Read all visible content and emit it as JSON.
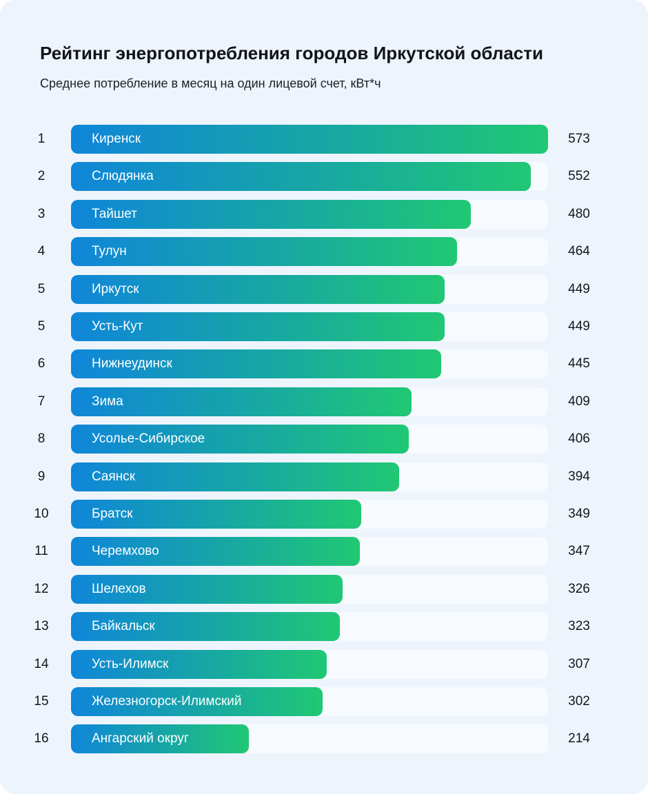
{
  "header": {
    "title": "Рейтинг энергопотребления городов Иркутской области",
    "subtitle": "Среднее потребление в месяц на один лицевой счет, кВт*ч"
  },
  "chart_data": {
    "type": "bar",
    "orientation": "horizontal",
    "title": "Рейтинг энергопотребления городов Иркутской области",
    "subtitle": "Среднее потребление в месяц на один лицевой счет, кВт*ч",
    "xlim": [
      0,
      573
    ],
    "grid": false,
    "colors": {
      "bar_start": "#0f86d9",
      "bar_end": "#20c873",
      "track": "#f7fafe",
      "background": "#eef4fc"
    },
    "ranks": [
      "1",
      "2",
      "3",
      "4",
      "5",
      "5",
      "6",
      "7",
      "8",
      "9",
      "10",
      "11",
      "12",
      "13",
      "14",
      "15",
      "16"
    ],
    "categories": [
      "Киренск",
      "Слюдянка",
      "Тайшет",
      "Тулун",
      "Иркутск",
      "Усть-Кут",
      "Нижнеудинск",
      "Зима",
      "Усолье-Сибирское",
      "Саянск",
      "Братск",
      "Черемхово",
      "Шелехов",
      "Байкальск",
      "Усть-Илимск",
      "Железногорск-Илимский",
      "Ангарский округ"
    ],
    "values": [
      573,
      552,
      480,
      464,
      449,
      449,
      445,
      409,
      406,
      394,
      349,
      347,
      326,
      323,
      307,
      302,
      214
    ]
  }
}
